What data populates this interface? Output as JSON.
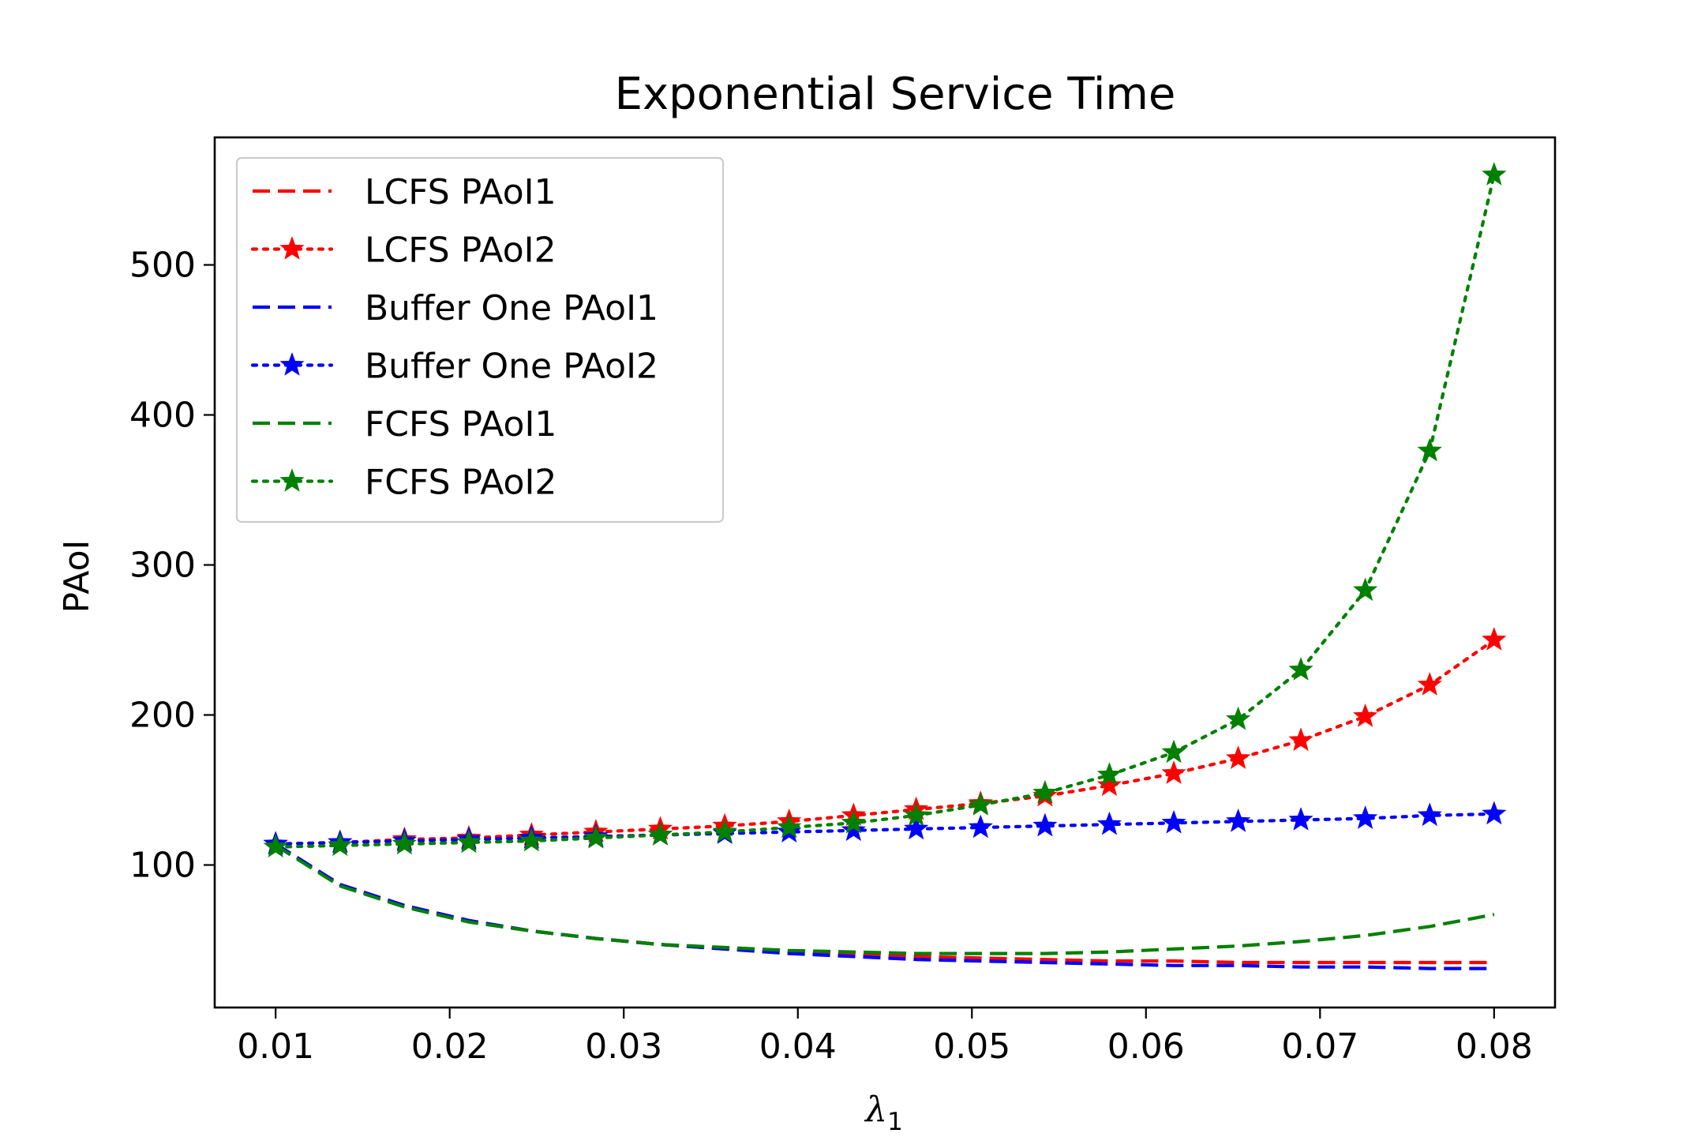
{
  "chart_data": {
    "type": "line",
    "title": "Exponential Service Time",
    "xlabel_symbol": "λ",
    "xlabel_subscript": "1",
    "ylabel": "PAoI",
    "xlim": [
      0.0065,
      0.0835
    ],
    "ylim": [
      5,
      585
    ],
    "xticks": [
      0.01,
      0.02,
      0.03,
      0.04,
      0.05,
      0.06,
      0.07,
      0.08
    ],
    "xtick_labels": [
      "0.01",
      "0.02",
      "0.03",
      "0.04",
      "0.05",
      "0.06",
      "0.07",
      "0.08"
    ],
    "yticks": [
      100,
      200,
      300,
      400,
      500
    ],
    "ytick_labels": [
      "100",
      "200",
      "300",
      "400",
      "500"
    ],
    "legend_position": "top-left",
    "x": [
      0.01,
      0.0137,
      0.0174,
      0.0211,
      0.0247,
      0.0284,
      0.0321,
      0.0358,
      0.0395,
      0.0432,
      0.0468,
      0.0505,
      0.0542,
      0.0579,
      0.0616,
      0.0653,
      0.0689,
      0.0726,
      0.0763,
      0.08
    ],
    "series": [
      {
        "name": "LCFS PAoI1",
        "color": "#ff0000",
        "linestyle": "dashed",
        "marker": "none",
        "values": [
          114,
          87,
          73,
          63,
          56,
          51,
          47,
          44,
          42,
          40,
          39,
          38,
          37,
          36,
          36,
          35,
          35,
          35,
          35,
          35
        ]
      },
      {
        "name": "LCFS PAoI2",
        "color": "#ff0000",
        "linestyle": "dotted",
        "marker": "star",
        "values": [
          114,
          115,
          117,
          118,
          120,
          122,
          124,
          126,
          129,
          133,
          137,
          141,
          146,
          153,
          161,
          171,
          183,
          199,
          220,
          250
        ]
      },
      {
        "name": "Buffer One PAoI1",
        "color": "#0000ff",
        "linestyle": "dashed",
        "marker": "none",
        "values": [
          114,
          87,
          73,
          63,
          56,
          51,
          47,
          44,
          41,
          39,
          37,
          36,
          35,
          34,
          33,
          33,
          32,
          32,
          31,
          31
        ]
      },
      {
        "name": "Buffer One PAoI2",
        "color": "#0000ff",
        "linestyle": "dotted",
        "marker": "star",
        "values": [
          114,
          115,
          116,
          117,
          118,
          119,
          120,
          121,
          122,
          123,
          124,
          125,
          126,
          127,
          128,
          129,
          130,
          131,
          133,
          134
        ]
      },
      {
        "name": "FCFS PAoI1",
        "color": "#008000",
        "linestyle": "dashed",
        "marker": "none",
        "values": [
          113,
          86,
          72,
          62,
          56,
          51,
          47,
          45,
          43,
          42,
          41,
          41,
          41,
          42,
          44,
          46,
          49,
          53,
          59,
          67
        ]
      },
      {
        "name": "FCFS PAoI2",
        "color": "#008000",
        "linestyle": "dotted",
        "marker": "star",
        "values": [
          112,
          113,
          114,
          115,
          116,
          118,
          120,
          122,
          125,
          128,
          133,
          140,
          148,
          160,
          175,
          197,
          230,
          283,
          376,
          560
        ]
      }
    ]
  }
}
